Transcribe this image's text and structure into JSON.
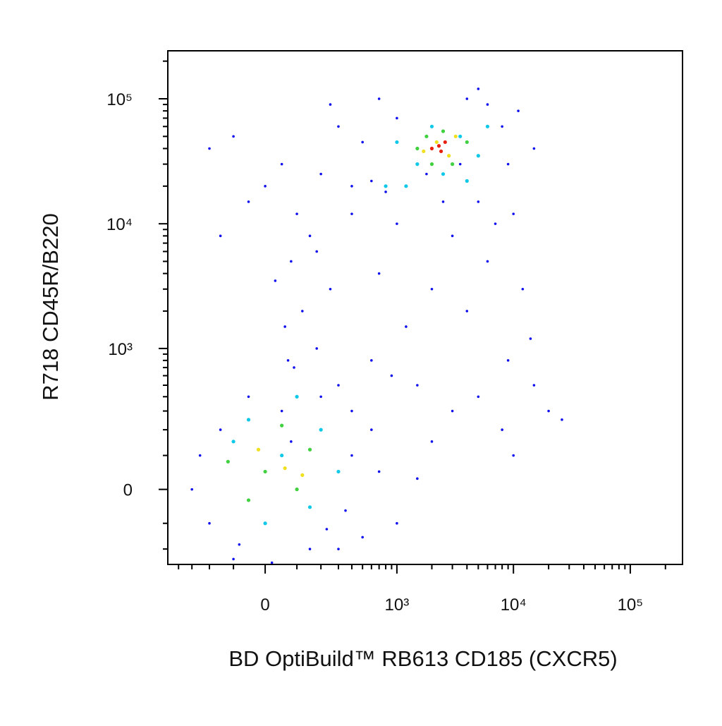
{
  "chart_data": {
    "type": "scatter",
    "xlabel": "BD OptiBuild™ RB613 CD185 (CXCR5)",
    "ylabel": "R718 CD45R/B220",
    "scale": "asinh",
    "cofactor": 150,
    "xlim": [
      -500,
      280000
    ],
    "ylim": [
      -280,
      242000
    ],
    "xticks": [
      0,
      {
        "value": 1000,
        "label": "10³"
      },
      {
        "value": 10000,
        "label": "10⁴"
      },
      {
        "value": 100000,
        "label": "10⁵"
      }
    ],
    "yticks": [
      0,
      {
        "value": 1000,
        "label": "10³"
      },
      {
        "value": 10000,
        "label": "10⁴"
      },
      {
        "value": 100000,
        "label": "10⁵"
      }
    ],
    "xminor": [
      -400,
      -300,
      -200,
      -100,
      100,
      200,
      300,
      400,
      500,
      600,
      700,
      800,
      900,
      2000,
      3000,
      4000,
      5000,
      6000,
      7000,
      8000,
      9000,
      20000,
      30000,
      40000,
      50000,
      60000,
      70000,
      80000,
      90000,
      200000
    ],
    "yminor": [
      -200,
      -100,
      100,
      200,
      300,
      400,
      500,
      600,
      700,
      800,
      900,
      2000,
      3000,
      4000,
      5000,
      6000,
      7000,
      8000,
      9000,
      20000,
      30000,
      40000,
      50000,
      60000,
      70000,
      80000,
      90000,
      200000
    ],
    "series": [
      {
        "color": "#1010ee",
        "x": [
          -100,
          50,
          200,
          400,
          600,
          800,
          300,
          -50,
          100,
          150,
          80,
          250,
          120,
          60,
          180,
          90,
          300,
          200,
          50,
          400,
          600,
          900,
          1500,
          3000,
          5000,
          8000,
          10000,
          15000,
          20000,
          4000,
          6000,
          3000,
          2000,
          1200,
          7000,
          10000,
          5000,
          8000,
          6000,
          4000,
          1000,
          500,
          -200,
          0,
          -150,
          700,
          1000,
          2500,
          12000,
          14000,
          9000,
          2000,
          1000,
          500,
          300,
          -200,
          -300,
          -250,
          -100,
          150,
          700,
          1500,
          600,
          400,
          20,
          -50,
          70,
          30,
          180,
          400,
          1800,
          3500,
          9000,
          11000,
          700,
          250,
          -80,
          230,
          80,
          -150,
          350,
          5000,
          15000,
          26000
        ],
        "values": [
          50000,
          30000,
          25000,
          20000,
          22000,
          18000,
          60000,
          15000,
          12000,
          8000,
          5000,
          3000,
          2000,
          1500,
          1000,
          700,
          500,
          400,
          300,
          300,
          800,
          600,
          500,
          300,
          400,
          200,
          100,
          500,
          300,
          2000,
          5000,
          8000,
          3000,
          1500,
          10000,
          12000,
          15000,
          60000,
          90000,
          100000,
          70000,
          45000,
          40000,
          20000,
          8000,
          4000,
          10000,
          15000,
          3000,
          1200,
          800,
          150,
          -100,
          -150,
          -200,
          -100,
          0,
          100,
          -250,
          -200,
          50,
          30,
          200,
          100,
          -270,
          400,
          800,
          3500,
          6000,
          12000,
          25000,
          30000,
          30000,
          80000,
          100000,
          90000,
          -180,
          -120,
          150,
          200,
          -60,
          120000,
          40000,
          250
        ]
      },
      {
        "color": "#10c8e8",
        "x": [
          2500,
          1500,
          3500,
          5000,
          1200,
          800,
          4000,
          50,
          150,
          -100,
          0,
          200,
          100,
          300,
          -50,
          6000,
          1000,
          2000
        ],
        "values": [
          25000,
          30000,
          50000,
          35000,
          20000,
          20000,
          22000,
          100,
          -50,
          150,
          -100,
          200,
          400,
          50,
          250,
          60000,
          45000,
          60000
        ]
      },
      {
        "color": "#40d040",
        "x": [
          2000,
          3000,
          1500,
          4000,
          2500,
          1800,
          0,
          100,
          -50,
          150,
          50,
          -120
        ],
        "values": [
          30000,
          30000,
          40000,
          45000,
          55000,
          50000,
          50,
          0,
          -30,
          120,
          220,
          80
        ]
      },
      {
        "color": "#f0e020",
        "x": [
          2200,
          2800,
          1700,
          3200,
          60,
          -20,
          120
        ],
        "values": [
          45000,
          35000,
          38000,
          50000,
          60,
          120,
          40
        ]
      },
      {
        "color": "#e82010",
        "x": [
          2300,
          2000,
          2600,
          2400
        ],
        "values": [
          42000,
          40000,
          45000,
          38000
        ]
      }
    ]
  }
}
